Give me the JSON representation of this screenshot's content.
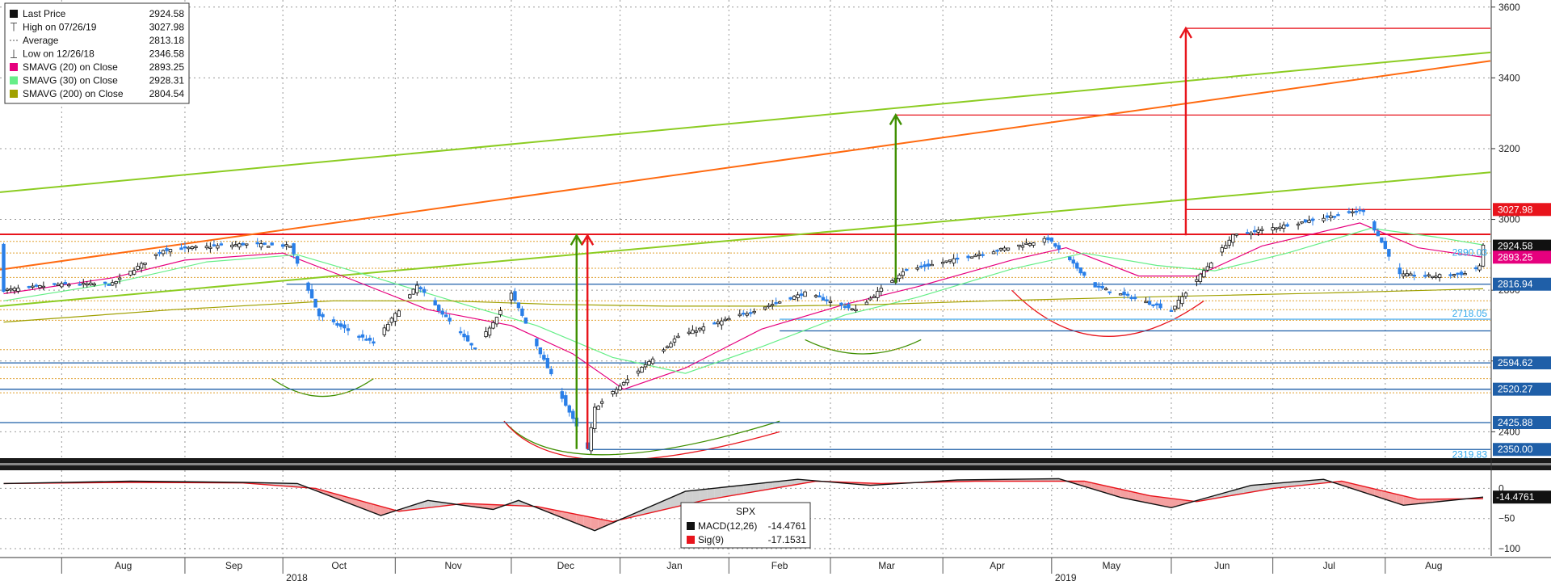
{
  "legend": {
    "items": [
      {
        "label": "Last Price",
        "value": "2924.58",
        "color": "#111111",
        "icon": "square"
      },
      {
        "label": "High on 07/26/19",
        "value": "3027.98",
        "color": "#555555",
        "icon": "t-high"
      },
      {
        "label": "Average",
        "value": "2813.18",
        "color": "#555555",
        "icon": "dash"
      },
      {
        "label": "Low on 12/26/18",
        "value": "2346.58",
        "color": "#555555",
        "icon": "t-low"
      },
      {
        "label": "SMAVG (20)  on Close",
        "value": "2893.25",
        "color": "#e6007e",
        "icon": "square"
      },
      {
        "label": "SMAVG (30)  on Close",
        "value": "2928.31",
        "color": "#66ee88",
        "icon": "square"
      },
      {
        "label": "SMAVG (200)  on Close",
        "value": "2804.54",
        "color": "#a0a000",
        "icon": "square"
      }
    ]
  },
  "price_tags": [
    {
      "label": "3027.98",
      "value": 3027.98,
      "bg": "#e8141c",
      "fg": "#ffffff"
    },
    {
      "label": "2924.58",
      "value": 2924.58,
      "bg": "#111111",
      "fg": "#ffffff"
    },
    {
      "label": "2893.25",
      "value": 2893.25,
      "bg": "#e6007e",
      "fg": "#ffffff"
    },
    {
      "label": "2816.94",
      "value": 2816.94,
      "bg": "#1f5fa8",
      "fg": "#ffffff"
    },
    {
      "label": "2594.62",
      "value": 2594.62,
      "bg": "#1f5fa8",
      "fg": "#ffffff"
    },
    {
      "label": "2520.27",
      "value": 2520.27,
      "bg": "#1f5fa8",
      "fg": "#ffffff"
    },
    {
      "label": "2425.88",
      "value": 2425.88,
      "bg": "#1f5fa8",
      "fg": "#ffffff"
    },
    {
      "label": "2350.00",
      "value": 2350.0,
      "bg": "#1f5fa8",
      "fg": "#ffffff"
    }
  ],
  "inline_labels": [
    {
      "text": "2890.03",
      "value": 2890.03,
      "color": "#33aaee"
    },
    {
      "text": "2718.05",
      "value": 2718.05,
      "color": "#33aaee"
    },
    {
      "text": "2319.83",
      "value": 2319.83,
      "color": "#33aaee"
    }
  ],
  "macd_legend": {
    "title": "SPX",
    "items": [
      {
        "label": "MACD(12,26)",
        "value": "-14.4761",
        "color": "#111111"
      },
      {
        "label": "Sig(9)",
        "value": "-17.1531",
        "color": "#e8141c"
      }
    ]
  },
  "macd_tag": {
    "label": "-14.4761",
    "value": -14.4761
  },
  "colors": {
    "up": "#111111",
    "down": "#2a7fe8",
    "sma20": "#e6007e",
    "sma30": "#66ee88",
    "sma200": "#a0a000",
    "green_trend": "#8ccc22",
    "orange_trend": "#ff6a10",
    "red_level": "#e8141c",
    "blue_level": "#1f5fa8",
    "fib": "#e0a030"
  },
  "chart_data": {
    "type": "candlestick",
    "x_axis": {
      "ticks": [
        "Aug",
        "Sep",
        "Oct",
        "Nov",
        "Dec",
        "Jan",
        "Feb",
        "Mar",
        "Apr",
        "May",
        "Jun",
        "Jul",
        "Aug"
      ],
      "tick_dates": [
        "2018-08-01",
        "2018-09-04",
        "2018-10-01",
        "2018-11-01",
        "2018-12-03",
        "2019-01-02",
        "2019-02-01",
        "2019-03-01",
        "2019-04-01",
        "2019-05-01",
        "2019-06-03",
        "2019-07-01",
        "2019-08-01"
      ],
      "years": [
        {
          "label": "2018",
          "date": "2018-10-01"
        },
        {
          "label": "2019",
          "date": "2019-05-01"
        }
      ],
      "range": [
        "2018-07-15",
        "2019-08-30"
      ]
    },
    "y_axis": {
      "ticks": [
        2400,
        2600,
        2800,
        3000,
        3200,
        3400,
        3600
      ],
      "range": [
        2330,
        3620
      ]
    },
    "macd_axis": {
      "ticks": [
        "0",
        "−50",
        "−100"
      ],
      "tick_values": [
        0,
        -50,
        -100
      ],
      "range": [
        -112,
        22
      ]
    },
    "series": [
      {
        "name": "SPX",
        "anchors": [
          [
            "2018-07-16",
            2800
          ],
          [
            "2018-07-31",
            2816
          ],
          [
            "2018-08-15",
            2818
          ],
          [
            "2018-08-29",
            2914
          ],
          [
            "2018-09-20",
            2930
          ],
          [
            "2018-10-03",
            2925
          ],
          [
            "2018-10-11",
            2728
          ],
          [
            "2018-10-26",
            2650
          ],
          [
            "2018-11-07",
            2813
          ],
          [
            "2018-11-23",
            2632
          ],
          [
            "2018-12-03",
            2790
          ],
          [
            "2018-12-24",
            2351
          ],
          [
            "2018-12-26",
            2467
          ],
          [
            "2019-01-18",
            2670
          ],
          [
            "2019-02-22",
            2792
          ],
          [
            "2019-03-08",
            2743
          ],
          [
            "2019-03-21",
            2854
          ],
          [
            "2019-04-30",
            2945
          ],
          [
            "2019-05-13",
            2811
          ],
          [
            "2019-06-03",
            2744
          ],
          [
            "2019-06-20",
            2954
          ],
          [
            "2019-07-26",
            3027
          ],
          [
            "2019-08-05",
            2844
          ],
          [
            "2019-08-14",
            2840
          ],
          [
            "2019-08-23",
            2847
          ],
          [
            "2019-08-27",
            2869
          ],
          [
            "2019-08-28",
            2924
          ]
        ]
      },
      {
        "name": "SMAVG (20) on Close",
        "points": [
          [
            "2018-07-16",
            2790
          ],
          [
            "2018-08-15",
            2835
          ],
          [
            "2018-09-04",
            2885
          ],
          [
            "2018-10-01",
            2905
          ],
          [
            "2018-10-20",
            2830
          ],
          [
            "2018-11-10",
            2745
          ],
          [
            "2018-12-03",
            2700
          ],
          [
            "2018-12-20",
            2620
          ],
          [
            "2019-01-03",
            2520
          ],
          [
            "2019-01-20",
            2580
          ],
          [
            "2019-02-10",
            2690
          ],
          [
            "2019-03-05",
            2760
          ],
          [
            "2019-03-25",
            2810
          ],
          [
            "2019-04-20",
            2885
          ],
          [
            "2019-05-05",
            2920
          ],
          [
            "2019-05-25",
            2840
          ],
          [
            "2019-06-10",
            2840
          ],
          [
            "2019-06-28",
            2925
          ],
          [
            "2019-07-25",
            2990
          ],
          [
            "2019-08-10",
            2920
          ],
          [
            "2019-08-28",
            2893
          ]
        ]
      },
      {
        "name": "SMAVG (30) on Close",
        "points": [
          [
            "2018-07-16",
            2770
          ],
          [
            "2018-08-15",
            2820
          ],
          [
            "2018-09-10",
            2880
          ],
          [
            "2018-10-05",
            2900
          ],
          [
            "2018-10-25",
            2840
          ],
          [
            "2018-11-20",
            2760
          ],
          [
            "2018-12-10",
            2700
          ],
          [
            "2018-12-31",
            2610
          ],
          [
            "2019-01-20",
            2565
          ],
          [
            "2019-02-10",
            2640
          ],
          [
            "2019-03-05",
            2730
          ],
          [
            "2019-03-25",
            2780
          ],
          [
            "2019-04-20",
            2860
          ],
          [
            "2019-05-10",
            2905
          ],
          [
            "2019-05-30",
            2870
          ],
          [
            "2019-06-15",
            2855
          ],
          [
            "2019-07-05",
            2905
          ],
          [
            "2019-07-28",
            2975
          ],
          [
            "2019-08-15",
            2950
          ],
          [
            "2019-08-28",
            2928
          ]
        ]
      },
      {
        "name": "SMAVG (200) on Close",
        "points": [
          [
            "2018-07-16",
            2710
          ],
          [
            "2018-09-01",
            2745
          ],
          [
            "2018-10-15",
            2770
          ],
          [
            "2018-11-15",
            2770
          ],
          [
            "2018-12-15",
            2760
          ],
          [
            "2019-01-15",
            2755
          ],
          [
            "2019-02-15",
            2755
          ],
          [
            "2019-03-15",
            2760
          ],
          [
            "2019-04-15",
            2770
          ],
          [
            "2019-05-15",
            2778
          ],
          [
            "2019-06-15",
            2785
          ],
          [
            "2019-07-15",
            2792
          ],
          [
            "2019-08-28",
            2804
          ]
        ]
      },
      {
        "name": "MACD(12,26)",
        "points": [
          [
            "2018-07-16",
            8
          ],
          [
            "2018-08-20",
            12
          ],
          [
            "2018-09-20",
            10
          ],
          [
            "2018-10-05",
            8
          ],
          [
            "2018-10-28",
            -45
          ],
          [
            "2018-11-10",
            -20
          ],
          [
            "2018-11-28",
            -35
          ],
          [
            "2018-12-05",
            -20
          ],
          [
            "2018-12-26",
            -70
          ],
          [
            "2019-01-20",
            -5
          ],
          [
            "2019-02-20",
            15
          ],
          [
            "2019-03-12",
            5
          ],
          [
            "2019-04-05",
            14
          ],
          [
            "2019-05-03",
            16
          ],
          [
            "2019-05-20",
            -15
          ],
          [
            "2019-06-03",
            -32
          ],
          [
            "2019-06-25",
            5
          ],
          [
            "2019-07-15",
            15
          ],
          [
            "2019-08-06",
            -28
          ],
          [
            "2019-08-28",
            -14.4761
          ]
        ]
      },
      {
        "name": "Sig(9)",
        "points": [
          [
            "2018-07-16",
            8
          ],
          [
            "2018-08-20",
            10
          ],
          [
            "2018-09-20",
            9
          ],
          [
            "2018-10-10",
            0
          ],
          [
            "2018-11-02",
            -38
          ],
          [
            "2018-11-20",
            -25
          ],
          [
            "2018-12-10",
            -30
          ],
          [
            "2018-12-31",
            -55
          ],
          [
            "2019-01-25",
            -20
          ],
          [
            "2019-02-25",
            12
          ],
          [
            "2019-03-15",
            8
          ],
          [
            "2019-04-10",
            12
          ],
          [
            "2019-05-10",
            12
          ],
          [
            "2019-05-28",
            -12
          ],
          [
            "2019-06-10",
            -22
          ],
          [
            "2019-07-01",
            0
          ],
          [
            "2019-07-20",
            12
          ],
          [
            "2019-08-10",
            -18
          ],
          [
            "2019-08-28",
            -17.1531
          ]
        ]
      }
    ],
    "horizontal_lines": [
      {
        "value": 3540,
        "color": "#e8141c",
        "from": "2019-06-07"
      },
      {
        "value": 3295,
        "color": "#e8141c",
        "from": "2019-03-19"
      },
      {
        "value": 3027.98,
        "color": "#e8141c",
        "from": "2019-06-07"
      },
      {
        "value": 2958,
        "color": "#e8141c",
        "from": "2018-07-15"
      },
      {
        "value": 2816.94,
        "color": "#1f5fa8",
        "from": "2018-10-02"
      },
      {
        "value": 2718.05,
        "color": "#5ab4f0",
        "from": "2019-02-15"
      },
      {
        "value": 2685,
        "color": "#1f5fa8",
        "from": "2019-02-15"
      },
      {
        "value": 2594.62,
        "color": "#1f5fa8",
        "from": "2018-07-15"
      },
      {
        "value": 2520.27,
        "color": "#1f5fa8",
        "from": "2018-07-15"
      },
      {
        "value": 2425.88,
        "color": "#1f5fa8",
        "from": "2018-07-15"
      },
      {
        "value": 2350.0,
        "color": "#1f5fa8",
        "from": "2018-12-24"
      }
    ],
    "fib_lines": [
      2938,
      2905,
      2862,
      2836,
      2770,
      2745,
      2715,
      2632,
      2583,
      2550,
      2510
    ],
    "trend_lines": [
      {
        "color": "#8ccc22",
        "from": [
          "2018-07-15",
          3077
        ],
        "to": [
          "2019-08-30",
          3472
        ]
      },
      {
        "color": "#ff6a10",
        "from": [
          "2018-07-15",
          2858
        ],
        "to": [
          "2019-08-30",
          3448
        ]
      },
      {
        "color": "#8ccc22",
        "from": [
          "2018-07-15",
          2755
        ],
        "to": [
          "2019-08-30",
          3133
        ]
      }
    ],
    "arrows": [
      {
        "color": "#3f8f00",
        "date": "2018-12-21",
        "from": 2351,
        "to": 2955
      },
      {
        "color": "#e8141c",
        "date": "2018-12-24",
        "from": 2351,
        "to": 2955
      },
      {
        "color": "#3f8f00",
        "date": "2019-03-19",
        "from": 2820,
        "to": 3295
      },
      {
        "color": "#e8141c",
        "date": "2019-06-07",
        "from": 2955,
        "to": 3540
      }
    ],
    "curves": [
      {
        "color": "#3f8f00",
        "from": [
          "2018-09-28",
          2550
        ],
        "mid": [
          "2018-10-12",
          2500
        ],
        "to": [
          "2018-10-26",
          2550
        ]
      },
      {
        "color": "#3f8f00",
        "from": [
          "2018-12-01",
          2430
        ],
        "mid": [
          "2018-12-28",
          2335
        ],
        "to": [
          "2019-02-15",
          2430
        ]
      },
      {
        "color": "#e8141c",
        "from": [
          "2018-12-01",
          2430
        ],
        "mid": [
          "2018-12-28",
          2320
        ],
        "to": [
          "2019-02-15",
          2400
        ]
      },
      {
        "color": "#3f8f00",
        "from": [
          "2019-02-22",
          2660
        ],
        "mid": [
          "2019-03-10",
          2620
        ],
        "to": [
          "2019-03-26",
          2660
        ]
      },
      {
        "color": "#e8141c",
        "from": [
          "2019-04-20",
          2800
        ],
        "mid": [
          "2019-05-15",
          2670
        ],
        "to": [
          "2019-06-12",
          2770
        ]
      }
    ]
  }
}
